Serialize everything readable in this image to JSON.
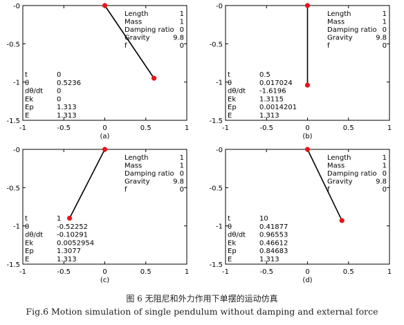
{
  "figure": {
    "caption_cn": "图 6 无阻尼和外力作用下单摆的运动仿真",
    "caption_en": "Fig.6 Motion simulation of single pendulum without damping and external force"
  },
  "colors": {
    "bob": "#e8141b",
    "rod": "#000000",
    "frame": "#000000"
  },
  "chart_data": [
    {
      "type": "scatter",
      "label": "(a)",
      "xlim": [
        -1,
        1
      ],
      "ylim": [
        -1.5,
        0
      ],
      "x_ticks": [
        "-1",
        "-0.5",
        "0",
        "0.5",
        "1"
      ],
      "y_ticks": [
        "-0",
        "-0.5",
        "-1",
        "-1.5"
      ],
      "pivot": [
        0,
        0
      ],
      "bob": [
        0.6,
        -0.95
      ],
      "params": [
        [
          "Length",
          "1"
        ],
        [
          "Mass",
          "1"
        ],
        [
          "Damping ratio",
          "0"
        ],
        [
          "Gravity",
          "9.8"
        ],
        [
          "f",
          "0"
        ]
      ],
      "state": [
        [
          "t",
          "0"
        ],
        [
          "θ",
          "0.5236"
        ],
        [
          "dθ/dt",
          "0"
        ],
        [
          "Ek",
          "0"
        ],
        [
          "Ep",
          "1.313"
        ],
        [
          "E",
          "1.313"
        ]
      ]
    },
    {
      "type": "scatter",
      "label": "(b)",
      "xlim": [
        -1,
        1
      ],
      "ylim": [
        -1.5,
        0
      ],
      "x_ticks": [
        "-1",
        "-0.5",
        "0",
        "0.5",
        "1"
      ],
      "y_ticks": [
        "-0",
        "-0.5",
        "-1",
        "-1.5"
      ],
      "pivot": [
        0,
        0
      ],
      "bob": [
        0.0,
        -1.04
      ],
      "params": [
        [
          "Length",
          "1"
        ],
        [
          "Mass",
          "1"
        ],
        [
          "Damping ratio",
          "0"
        ],
        [
          "Gravity",
          "9.8"
        ],
        [
          "f",
          "0"
        ]
      ],
      "state": [
        [
          "t",
          "0.5"
        ],
        [
          "θ",
          "0.017024"
        ],
        [
          "dθ/dt",
          "-1.6196"
        ],
        [
          "Ek",
          "1.3115"
        ],
        [
          "Ep",
          "0.0014201"
        ],
        [
          "E",
          "1.313"
        ]
      ]
    },
    {
      "type": "scatter",
      "label": "(c)",
      "xlim": [
        -1,
        1
      ],
      "ylim": [
        -1.5,
        0
      ],
      "x_ticks": [
        "-1",
        "-0.5",
        "0",
        "0.5",
        "1"
      ],
      "y_ticks": [
        "-0",
        "-0.5",
        "-1",
        "-1.5"
      ],
      "pivot": [
        0,
        0
      ],
      "bob": [
        -0.43,
        -0.9
      ],
      "params": [
        [
          "Length",
          "1"
        ],
        [
          "Mass",
          "1"
        ],
        [
          "Damping ratio",
          "0"
        ],
        [
          "Gravity",
          "9.8"
        ],
        [
          "f",
          "0"
        ]
      ],
      "state": [
        [
          "t",
          "1"
        ],
        [
          "θ",
          "-0.52252"
        ],
        [
          "dθ/dt",
          "-0.10291"
        ],
        [
          "Ek",
          "0.0052954"
        ],
        [
          "Ep",
          "1.3077"
        ],
        [
          "E",
          "1.313"
        ]
      ]
    },
    {
      "type": "scatter",
      "label": "(d)",
      "xlim": [
        -1,
        1
      ],
      "ylim": [
        -1.5,
        0
      ],
      "x_ticks": [
        "-1",
        "-0.5",
        "0",
        "0.5",
        "1"
      ],
      "y_ticks": [
        "-0",
        "-0.5",
        "-1",
        "-1.5"
      ],
      "pivot": [
        0,
        0
      ],
      "bob": [
        0.42,
        -0.93
      ],
      "params": [
        [
          "Length",
          "1"
        ],
        [
          "Mass",
          "1"
        ],
        [
          "Damping ratio",
          "0"
        ],
        [
          "Gravity",
          "9.8"
        ],
        [
          "f",
          "0"
        ]
      ],
      "state": [
        [
          "t",
          "10"
        ],
        [
          "θ",
          "0.41877"
        ],
        [
          "dθ/dt",
          "0.96553"
        ],
        [
          "Ek",
          "0.46612"
        ],
        [
          "Ep",
          "0.84683"
        ],
        [
          "E",
          "1.313"
        ]
      ]
    }
  ]
}
